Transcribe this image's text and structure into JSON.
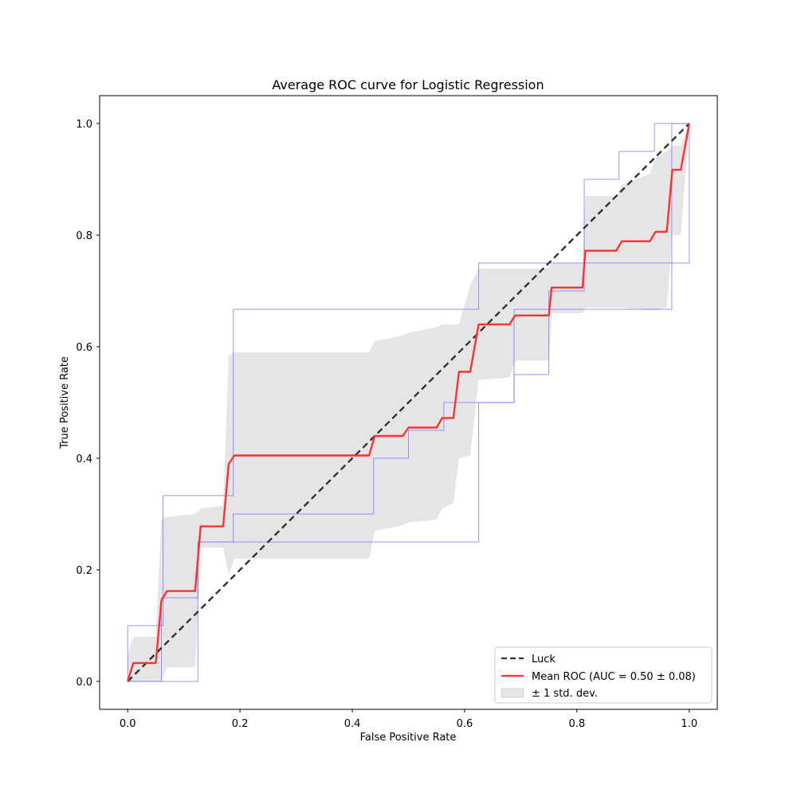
{
  "chart_data": {
    "type": "line",
    "title": "Average ROC curve for Logistic Regression",
    "xlabel": "False Positive Rate",
    "ylabel": "True Positive Rate",
    "xlim": [
      -0.05,
      1.05
    ],
    "ylim": [
      -0.05,
      1.05
    ],
    "xticks": [
      "0.0",
      "0.2",
      "0.4",
      "0.6",
      "0.8",
      "1.0"
    ],
    "yticks": [
      "0.0",
      "0.2",
      "0.4",
      "0.6",
      "0.8",
      "1.0"
    ],
    "grid": false,
    "legend_position": "lower-right",
    "colors": {
      "luck": "#333333",
      "mean": "#ff3030",
      "band": "#cccccc",
      "folds": "#7070ff"
    },
    "legend": [
      {
        "key": "luck",
        "label": "Luck"
      },
      {
        "key": "mean",
        "label": "Mean ROC (AUC = 0.50 ± 0.08)"
      },
      {
        "key": "band",
        "label": "± 1 std. dev."
      }
    ],
    "luck": {
      "x": [
        0,
        1
      ],
      "y": [
        0,
        1
      ]
    },
    "mean": {
      "x": [
        0.0,
        0.01,
        0.03,
        0.05,
        0.06,
        0.07,
        0.12,
        0.13,
        0.17,
        0.18,
        0.19,
        0.43,
        0.44,
        0.49,
        0.5,
        0.55,
        0.56,
        0.58,
        0.59,
        0.61,
        0.625,
        0.68,
        0.69,
        0.75,
        0.755,
        0.81,
        0.815,
        0.87,
        0.88,
        0.93,
        0.94,
        0.96,
        0.97,
        0.985,
        1.0
      ],
      "y": [
        0.0,
        0.033,
        0.033,
        0.033,
        0.145,
        0.162,
        0.162,
        0.278,
        0.278,
        0.39,
        0.405,
        0.405,
        0.44,
        0.44,
        0.455,
        0.455,
        0.472,
        0.472,
        0.555,
        0.555,
        0.64,
        0.64,
        0.656,
        0.656,
        0.706,
        0.706,
        0.772,
        0.772,
        0.789,
        0.789,
        0.806,
        0.806,
        0.917,
        0.917,
        1.0
      ]
    },
    "band": {
      "x": [
        0.0,
        0.01,
        0.05,
        0.06,
        0.07,
        0.12,
        0.13,
        0.17,
        0.18,
        0.19,
        0.43,
        0.44,
        0.49,
        0.5,
        0.55,
        0.56,
        0.58,
        0.59,
        0.61,
        0.625,
        0.68,
        0.69,
        0.75,
        0.755,
        0.81,
        0.815,
        0.87,
        0.88,
        0.93,
        0.94,
        0.96,
        0.97,
        0.985,
        1.0
      ],
      "upper": [
        0.05,
        0.08,
        0.08,
        0.29,
        0.295,
        0.3,
        0.31,
        0.315,
        0.585,
        0.59,
        0.59,
        0.61,
        0.62,
        0.625,
        0.635,
        0.64,
        0.64,
        0.64,
        0.71,
        0.74,
        0.74,
        0.74,
        0.74,
        0.75,
        0.75,
        0.87,
        0.87,
        0.89,
        0.91,
        0.94,
        0.95,
        0.96,
        0.96,
        1.0
      ],
      "lower": [
        0.0,
        0.0,
        0.0,
        0.0,
        0.025,
        0.025,
        0.24,
        0.24,
        0.19,
        0.22,
        0.22,
        0.27,
        0.28,
        0.285,
        0.29,
        0.31,
        0.32,
        0.4,
        0.405,
        0.54,
        0.545,
        0.575,
        0.575,
        0.66,
        0.66,
        0.67,
        0.67,
        0.67,
        0.665,
        0.665,
        0.67,
        0.8,
        0.8,
        1.0
      ]
    },
    "folds": [
      {
        "x": [
          0.0,
          0.0,
          0.06,
          0.06,
          0.125,
          0.125,
          0.375,
          0.375,
          0.563,
          0.563,
          0.625,
          0.625,
          0.688,
          0.688,
          0.75,
          0.75,
          0.813,
          0.813,
          0.875,
          0.875,
          0.938,
          0.938,
          1.0
        ],
        "y": [
          0.0,
          0.0,
          0.0,
          0.15,
          0.15,
          0.25,
          0.25,
          0.25,
          0.25,
          0.25,
          0.25,
          0.5,
          0.5,
          0.55,
          0.55,
          0.7,
          0.7,
          0.9,
          0.9,
          0.95,
          0.95,
          1.0,
          1.0
        ]
      },
      {
        "x": [
          0.0,
          0.0,
          0.063,
          0.063,
          0.125,
          0.125,
          0.188,
          0.188,
          0.438,
          0.438,
          0.5,
          0.5,
          0.563,
          0.563,
          0.594,
          0.594,
          0.625,
          0.625,
          0.75,
          0.75,
          0.813,
          0.813,
          0.875,
          0.875,
          0.969,
          0.969,
          1.0
        ],
        "y": [
          0.0,
          0.1,
          0.1,
          0.333,
          0.333,
          0.333,
          0.333,
          0.667,
          0.667,
          0.667,
          0.667,
          0.667,
          0.667,
          0.667,
          0.667,
          0.667,
          0.667,
          0.75,
          0.75,
          0.75,
          0.75,
          0.75,
          0.75,
          0.75,
          0.75,
          1.0,
          1.0
        ]
      },
      {
        "x": [
          0.0,
          0.0,
          0.125,
          0.125,
          0.188,
          0.188,
          0.438,
          0.438,
          0.5,
          0.5,
          0.563,
          0.563,
          0.594,
          0.594,
          0.625,
          0.625,
          0.688,
          0.688,
          0.75,
          0.75,
          0.813,
          0.813,
          0.969,
          0.969,
          1.0,
          1.0
        ],
        "y": [
          0.0,
          0.0,
          0.0,
          0.25,
          0.25,
          0.3,
          0.3,
          0.4,
          0.4,
          0.45,
          0.45,
          0.5,
          0.5,
          0.5,
          0.5,
          0.5,
          0.5,
          0.667,
          0.667,
          0.667,
          0.667,
          0.667,
          0.667,
          0.75,
          0.75,
          1.0
        ]
      }
    ]
  }
}
